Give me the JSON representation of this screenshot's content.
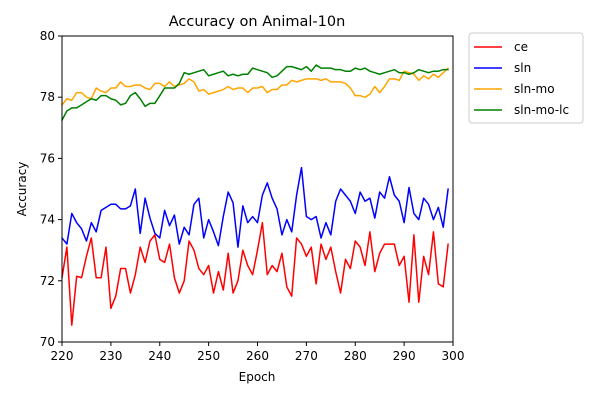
{
  "chart_data": {
    "type": "line",
    "title": "Accuracy on Animal-10n",
    "xlabel": "Epoch",
    "ylabel": "Accuracy",
    "xlim": [
      220,
      300
    ],
    "ylim": [
      70,
      80
    ],
    "xticks": [
      220,
      230,
      240,
      250,
      260,
      270,
      280,
      290,
      300
    ],
    "yticks": [
      70,
      72,
      74,
      76,
      78,
      80
    ],
    "grid": false,
    "legend_position": "outside-top-right",
    "x": [
      220,
      221,
      222,
      223,
      224,
      225,
      226,
      227,
      228,
      229,
      230,
      231,
      232,
      233,
      234,
      235,
      236,
      237,
      238,
      239,
      240,
      241,
      242,
      243,
      244,
      245,
      246,
      247,
      248,
      249,
      250,
      251,
      252,
      253,
      254,
      255,
      256,
      257,
      258,
      259,
      260,
      261,
      262,
      263,
      264,
      265,
      266,
      267,
      268,
      269,
      270,
      271,
      272,
      273,
      274,
      275,
      276,
      277,
      278,
      279,
      280,
      281,
      282,
      283,
      284,
      285,
      286,
      287,
      288,
      289,
      290,
      291,
      292,
      293,
      294,
      295,
      296,
      297,
      298,
      299
    ],
    "series": [
      {
        "name": "ce",
        "color": "#ff0000",
        "values": [
          72.1,
          73.1,
          70.55,
          72.15,
          72.1,
          72.8,
          73.4,
          72.1,
          72.1,
          73.1,
          71.1,
          71.5,
          72.4,
          72.4,
          71.6,
          72.2,
          73.1,
          72.6,
          73.3,
          73.5,
          72.7,
          72.6,
          73.2,
          72.1,
          71.6,
          72.0,
          73.3,
          73.0,
          72.4,
          72.2,
          72.5,
          71.6,
          72.3,
          71.7,
          72.9,
          71.6,
          72.0,
          73.0,
          72.5,
          72.2,
          73.0,
          73.9,
          72.2,
          72.5,
          72.3,
          72.9,
          71.8,
          71.5,
          73.4,
          73.2,
          72.8,
          73.1,
          71.9,
          73.2,
          72.7,
          73.1,
          72.3,
          71.6,
          72.7,
          72.4,
          73.3,
          73.1,
          72.5,
          73.6,
          72.3,
          72.9,
          73.2,
          73.2,
          73.2,
          72.5,
          72.8,
          71.3,
          73.5,
          71.3,
          72.8,
          72.2,
          73.6,
          71.9,
          71.8,
          73.2
        ]
      },
      {
        "name": "sln",
        "color": "#0000ff",
        "values": [
          73.4,
          73.2,
          74.2,
          73.9,
          73.7,
          73.3,
          73.9,
          73.6,
          74.3,
          74.4,
          74.5,
          74.5,
          74.35,
          74.35,
          74.45,
          75.0,
          73.55,
          74.7,
          74.05,
          73.55,
          73.4,
          74.3,
          73.8,
          74.15,
          73.2,
          73.75,
          73.5,
          74.5,
          74.7,
          73.4,
          74.0,
          73.6,
          73.15,
          74.1,
          74.9,
          74.55,
          73.1,
          74.45,
          73.9,
          74.1,
          73.9,
          74.8,
          75.2,
          74.7,
          74.35,
          73.5,
          74.0,
          73.6,
          74.8,
          75.7,
          74.1,
          74.0,
          74.1,
          73.4,
          73.9,
          73.5,
          74.6,
          75.0,
          74.8,
          74.6,
          74.2,
          74.9,
          74.6,
          74.7,
          74.05,
          74.9,
          74.7,
          75.4,
          74.8,
          74.6,
          73.9,
          75.05,
          74.2,
          74.0,
          74.7,
          74.5,
          74.0,
          74.4,
          73.75,
          75.0
        ]
      },
      {
        "name": "sln-mo",
        "color": "#ffa500",
        "values": [
          77.75,
          77.95,
          77.9,
          78.15,
          78.15,
          78.0,
          77.95,
          78.3,
          78.2,
          78.15,
          78.3,
          78.3,
          78.5,
          78.35,
          78.35,
          78.4,
          78.4,
          78.3,
          78.25,
          78.45,
          78.45,
          78.35,
          78.5,
          78.35,
          78.4,
          78.45,
          78.6,
          78.5,
          78.2,
          78.25,
          78.1,
          78.15,
          78.2,
          78.25,
          78.35,
          78.25,
          78.3,
          78.3,
          78.15,
          78.3,
          78.3,
          78.35,
          78.15,
          78.25,
          78.25,
          78.4,
          78.4,
          78.55,
          78.5,
          78.55,
          78.6,
          78.6,
          78.6,
          78.55,
          78.6,
          78.5,
          78.5,
          78.5,
          78.45,
          78.3,
          78.05,
          78.05,
          78.0,
          78.1,
          78.35,
          78.15,
          78.35,
          78.6,
          78.6,
          78.55,
          78.85,
          78.8,
          78.75,
          78.55,
          78.7,
          78.6,
          78.75,
          78.65,
          78.8,
          78.95
        ]
      },
      {
        "name": "sln-mo-lc",
        "color": "#008000",
        "values": [
          77.25,
          77.55,
          77.65,
          77.65,
          77.75,
          77.85,
          77.95,
          77.9,
          78.05,
          78.05,
          77.95,
          77.9,
          77.75,
          77.8,
          78.05,
          78.15,
          77.95,
          77.7,
          77.8,
          77.8,
          78.05,
          78.3,
          78.3,
          78.3,
          78.45,
          78.8,
          78.75,
          78.8,
          78.85,
          78.9,
          78.7,
          78.75,
          78.8,
          78.85,
          78.7,
          78.75,
          78.7,
          78.75,
          78.75,
          78.95,
          78.9,
          78.85,
          78.8,
          78.65,
          78.7,
          78.85,
          79.0,
          79.0,
          78.95,
          78.9,
          79.0,
          78.85,
          79.05,
          78.95,
          78.95,
          78.95,
          78.9,
          78.9,
          78.85,
          78.85,
          78.95,
          78.9,
          78.95,
          78.85,
          78.8,
          78.75,
          78.8,
          78.85,
          78.9,
          78.8,
          78.8,
          78.75,
          78.8,
          78.9,
          78.85,
          78.8,
          78.85,
          78.85,
          78.9,
          78.9
        ]
      }
    ]
  }
}
